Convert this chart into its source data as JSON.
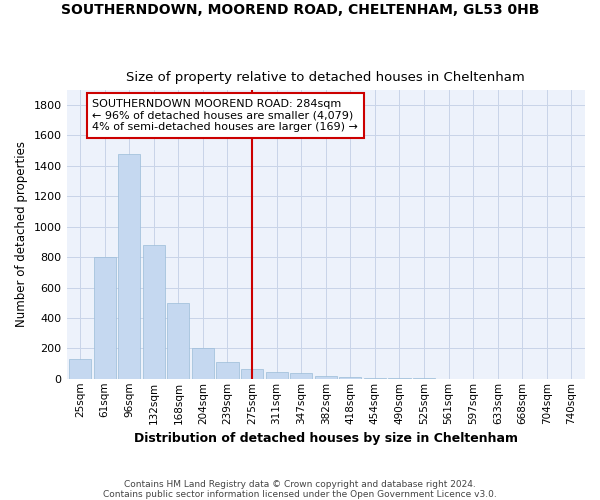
{
  "title": "SOUTHERNDOWN, MOOREND ROAD, CHELTENHAM, GL53 0HB",
  "subtitle": "Size of property relative to detached houses in Cheltenham",
  "xlabel": "Distribution of detached houses by size in Cheltenham",
  "ylabel": "Number of detached properties",
  "categories": [
    "25sqm",
    "61sqm",
    "96sqm",
    "132sqm",
    "168sqm",
    "204sqm",
    "239sqm",
    "275sqm",
    "311sqm",
    "347sqm",
    "382sqm",
    "418sqm",
    "454sqm",
    "490sqm",
    "525sqm",
    "561sqm",
    "597sqm",
    "633sqm",
    "668sqm",
    "704sqm",
    "740sqm"
  ],
  "values": [
    130,
    800,
    1480,
    880,
    495,
    205,
    110,
    65,
    45,
    35,
    20,
    10,
    8,
    4,
    2,
    1,
    1,
    0,
    0,
    0,
    0
  ],
  "bar_color": "#c5d8f0",
  "bar_edge_color": "#9bbcd8",
  "vline_index": 7,
  "vline_color": "#cc0000",
  "annotation_box_edge_color": "#cc0000",
  "grid_color": "#c8d4e8",
  "background_color": "#edf2fb",
  "ann_line1": "SOUTHERNDOWN MOOREND ROAD: 284sqm",
  "ann_line2": "← 96% of detached houses are smaller (4,079)",
  "ann_line3": "4% of semi-detached houses are larger (169) →",
  "footer_line1": "Contains HM Land Registry data © Crown copyright and database right 2024.",
  "footer_line2": "Contains public sector information licensed under the Open Government Licence v3.0.",
  "ylim": [
    0,
    1900
  ],
  "yticks": [
    0,
    200,
    400,
    600,
    800,
    1000,
    1200,
    1400,
    1600,
    1800
  ]
}
